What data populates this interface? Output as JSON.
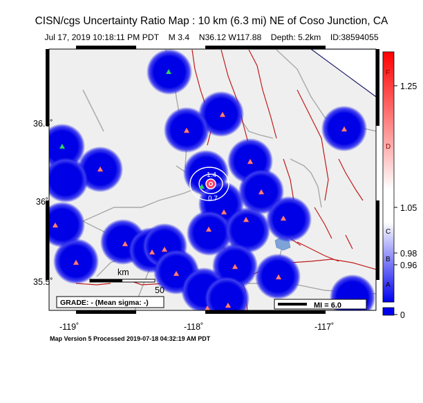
{
  "title": "CISN/cgs Uncertainty Ratio Map : 10 km (6.3 mi) NE of Coso Junction, CA",
  "subtitle": {
    "datetime": "Jul 17, 2019 10:18:11 PM PDT",
    "magnitude": "M 3.4",
    "location": "N36.12 W117.88",
    "depth": "Depth: 5.2km",
    "id": "ID:38594055"
  },
  "axes": {
    "x_ticks": [
      "-119˚",
      "-118˚",
      "-117˚"
    ],
    "y_ticks": [
      "36.5˚",
      "36˚",
      "35.5˚"
    ]
  },
  "scale_bar": {
    "unit": "km",
    "value": "50"
  },
  "grade_box": "GRADE: - (Mean sigma: -)",
  "mi_legend": "MI = 6.0",
  "contour_labels": [
    "1.4",
    "0.7"
  ],
  "colorbar": {
    "letters": [
      "F",
      "D",
      "C",
      "B",
      "A"
    ],
    "values": [
      "1.25",
      "1.05",
      "0.98",
      "0.96",
      "0"
    ],
    "colors": {
      "top": "#ff0000",
      "middle": "#ffffff",
      "bottom": "#0000ee"
    }
  },
  "footer": "Map Version 5 Processed 2019-07-18 04:32:19 AM PDT",
  "colors": {
    "uncertainty_blue": "#0000e6",
    "station_triangle": "#ff8080",
    "fault_line": "#c01a1a",
    "road_line": "#a8a8a8",
    "water": "#7da3d8",
    "epicenter": "#cc2244"
  },
  "icons": [
    "station-triangle-icon",
    "epicenter-star-icon"
  ]
}
